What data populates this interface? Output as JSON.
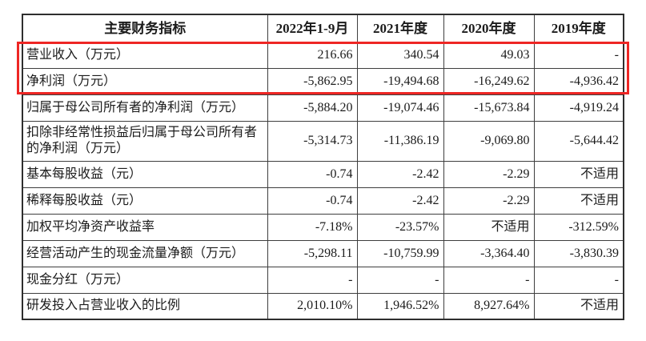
{
  "page": {
    "background_color": "#ffffff",
    "text_color": "#1b1b1b"
  },
  "table": {
    "border_color": "#3e3e3e",
    "highlight_color": "#ee2624",
    "header": [
      "主要财务指标",
      "2022年1-9月",
      "2021年度",
      "2020年度",
      "2019年度"
    ],
    "rows": [
      {
        "label": "营业收入（万元）",
        "values": [
          "216.66",
          "340.54",
          "49.03",
          "-"
        ],
        "highlighted": true
      },
      {
        "label": "净利润（万元）",
        "values": [
          "-5,862.95",
          "-19,494.68",
          "-16,249.62",
          "-4,936.42"
        ],
        "highlighted": true
      },
      {
        "label": "归属于母公司所有者的净利润（万元）",
        "values": [
          "-5,884.20",
          "-19,074.46",
          "-15,673.84",
          "-4,919.24"
        ],
        "highlighted": false
      },
      {
        "label": "扣除非经常性损益后归属于母公司所有者的净利润（万元）",
        "values": [
          "-5,314.73",
          "-11,386.19",
          "-9,069.80",
          "-5,644.42"
        ],
        "highlighted": false
      },
      {
        "label": "基本每股收益（元）",
        "values": [
          "-0.74",
          "-2.42",
          "-2.29",
          "不适用"
        ],
        "highlighted": false
      },
      {
        "label": "稀释每股收益（元）",
        "values": [
          "-0.74",
          "-2.42",
          "-2.29",
          "不适用"
        ],
        "highlighted": false
      },
      {
        "label": "加权平均净资产收益率",
        "values": [
          "-7.18%",
          "-23.57%",
          "不适用",
          "-312.59%"
        ],
        "highlighted": false
      },
      {
        "label": "经营活动产生的现金流量净额（万元）",
        "values": [
          "-5,298.11",
          "-10,759.99",
          "-3,364.40",
          "-3,830.39"
        ],
        "highlighted": false
      },
      {
        "label": "现金分红（万元）",
        "values": [
          "-",
          "-",
          "-",
          "-"
        ],
        "highlighted": false
      },
      {
        "label": "研发投入占营业收入的比例",
        "values": [
          "2,010.10%",
          "1,946.52%",
          "8,927.64%",
          "不适用"
        ],
        "highlighted": false
      }
    ]
  }
}
